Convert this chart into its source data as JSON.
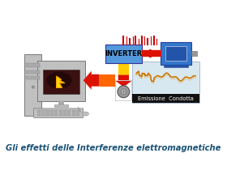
{
  "bg_color": "#ffffff",
  "title_text": "Gli effetti delle Interferenze elettromagnetiche",
  "title_color": "#1a5276",
  "title_fontsize": 7.2,
  "inverter_box_color": "#5599dd",
  "inverter_text": "INVERTER",
  "arrow_red": "#dd1100",
  "arrow_orange": "#ff6600",
  "arrow_yellow": "#ffcc00",
  "emission_box_bg": "#d8e8f0",
  "emission_label": "Emissione  Condotta",
  "motor_color": "#3377cc",
  "barcode_color": "#cc0000",
  "computer_gray": "#aaaaaa",
  "computer_dark": "#888888",
  "screen_dark": "#551111"
}
